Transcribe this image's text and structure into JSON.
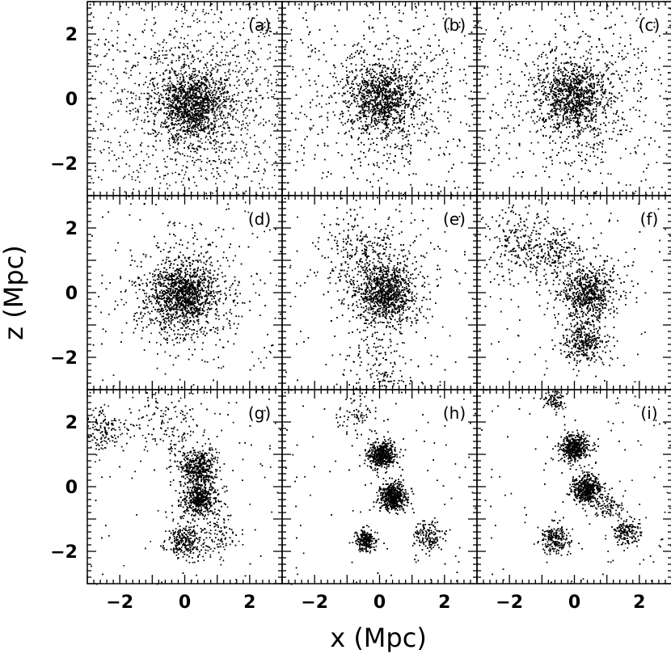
{
  "chart_data": {
    "type": "scatter",
    "layout": "3x3 panel grid of scatter plots",
    "xlabel": "x (Mpc)",
    "ylabel": "z (Mpc)",
    "xlim": [
      -3,
      3
    ],
    "ylim": [
      -3,
      3
    ],
    "x_ticks": [
      -2,
      0,
      2
    ],
    "y_ticks": [
      -2,
      0,
      2
    ],
    "x_tick_labels": [
      "−2",
      "0",
      "2"
    ],
    "y_tick_labels": [
      "−2",
      "0",
      "2"
    ],
    "marker_color": "#000000",
    "grid": false,
    "panels": [
      {
        "label": "(a)",
        "clumps": [
          {
            "x": 0.25,
            "y": -0.2,
            "spread": 0.55,
            "weight": 1.0
          }
        ],
        "halo_spread": 1.6,
        "background": 0.35
      },
      {
        "label": "(b)",
        "clumps": [
          {
            "x": 0.1,
            "y": 0.0,
            "spread": 0.5,
            "weight": 1.0
          }
        ],
        "halo_spread": 1.5,
        "background": 0.3
      },
      {
        "label": "(c)",
        "clumps": [
          {
            "x": 0.0,
            "y": 0.05,
            "spread": 0.5,
            "weight": 1.0
          }
        ],
        "halo_spread": 1.5,
        "background": 0.3
      },
      {
        "label": "(d)",
        "clumps": [
          {
            "x": -0.05,
            "y": -0.05,
            "spread": 0.45,
            "weight": 1.0
          }
        ],
        "halo_spread": 1.2,
        "background": 0.15
      },
      {
        "label": "(e)",
        "clumps": [
          {
            "x": 0.2,
            "y": 0.0,
            "spread": 0.4,
            "weight": 0.8
          },
          {
            "x": -0.5,
            "y": 1.2,
            "spread": 0.6,
            "weight": 0.25
          },
          {
            "x": 0.0,
            "y": -2.3,
            "spread": 0.5,
            "weight": 0.12
          }
        ],
        "halo_spread": 1.0,
        "background": 0.1
      },
      {
        "label": "(f)",
        "clumps": [
          {
            "x": 0.4,
            "y": 0.0,
            "spread": 0.35,
            "weight": 0.6
          },
          {
            "x": 0.3,
            "y": -1.5,
            "spread": 0.28,
            "weight": 0.3
          },
          {
            "x": -1.8,
            "y": 1.5,
            "spread": 0.5,
            "weight": 0.2
          },
          {
            "x": -0.6,
            "y": 1.3,
            "spread": 0.4,
            "weight": 0.2
          }
        ],
        "halo_spread": 1.0,
        "background": 0.08
      },
      {
        "label": "(g)",
        "clumps": [
          {
            "x": 0.4,
            "y": 0.6,
            "spread": 0.25,
            "weight": 0.35
          },
          {
            "x": 0.45,
            "y": -0.35,
            "spread": 0.25,
            "weight": 0.35
          },
          {
            "x": 0.0,
            "y": -1.7,
            "spread": 0.25,
            "weight": 0.2
          },
          {
            "x": -2.5,
            "y": 1.8,
            "spread": 0.3,
            "weight": 0.1
          },
          {
            "x": -0.5,
            "y": 2.0,
            "spread": 0.5,
            "weight": 0.1
          },
          {
            "x": 1.0,
            "y": -1.5,
            "spread": 0.3,
            "weight": 0.07
          }
        ],
        "halo_spread": 0.8,
        "background": 0.1
      },
      {
        "label": "(h)",
        "clumps": [
          {
            "x": 0.05,
            "y": 1.0,
            "spread": 0.2,
            "weight": 0.35
          },
          {
            "x": 0.4,
            "y": -0.3,
            "spread": 0.2,
            "weight": 0.35
          },
          {
            "x": -0.45,
            "y": -1.65,
            "spread": 0.15,
            "weight": 0.15
          },
          {
            "x": 1.5,
            "y": -1.5,
            "spread": 0.2,
            "weight": 0.1
          },
          {
            "x": -0.8,
            "y": 2.3,
            "spread": 0.3,
            "weight": 0.05
          }
        ],
        "halo_spread": 0.7,
        "background": 0.12
      },
      {
        "label": "(i)",
        "clumps": [
          {
            "x": 0.0,
            "y": 1.2,
            "spread": 0.2,
            "weight": 0.3
          },
          {
            "x": 0.35,
            "y": -0.05,
            "spread": 0.2,
            "weight": 0.3
          },
          {
            "x": -0.6,
            "y": -1.6,
            "spread": 0.2,
            "weight": 0.15
          },
          {
            "x": 1.6,
            "y": -1.4,
            "spread": 0.2,
            "weight": 0.1
          },
          {
            "x": -0.6,
            "y": 2.7,
            "spread": 0.15,
            "weight": 0.06
          },
          {
            "x": 1.0,
            "y": -0.6,
            "spread": 0.2,
            "weight": 0.06
          }
        ],
        "halo_spread": 0.7,
        "background": 0.15
      }
    ]
  }
}
